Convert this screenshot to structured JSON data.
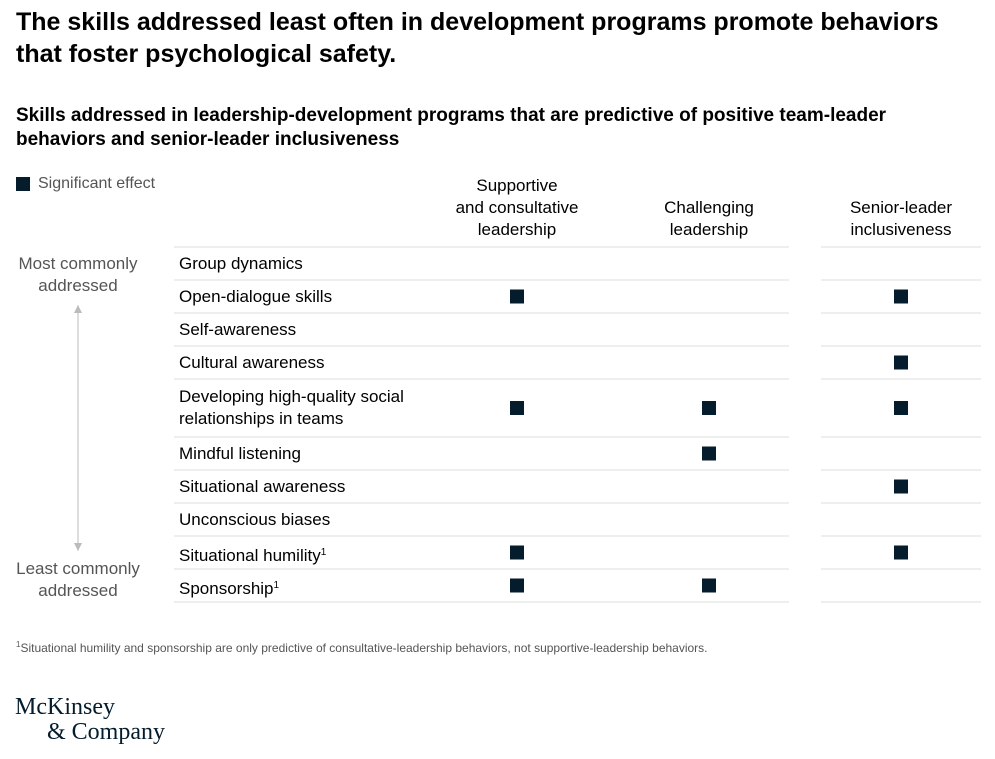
{
  "title": "The skills addressed least often in development programs promote behaviors that foster psychological safety.",
  "subtitle": "Skills addressed in leadership-development programs that are predictive of positive team-leader behaviors and senior-leader inclusiveness",
  "colors": {
    "marker": "#051c2c",
    "rule": "#dddddd",
    "arrow": "#bbbbbb",
    "muted": "#555555"
  },
  "chart_data": {
    "type": "table",
    "legend": "Significant effect",
    "columns": [
      {
        "lines": [
          "Supportive",
          "and consultative",
          "leadership"
        ]
      },
      {
        "lines": [
          "Challenging",
          "leadership"
        ]
      },
      {
        "lines": [
          "Senior-leader",
          "inclusiveness"
        ]
      }
    ],
    "rank_axis": {
      "top": [
        "Most commonly",
        "addressed"
      ],
      "bottom": [
        "Least commonly",
        "addressed"
      ]
    },
    "rows": [
      {
        "label": [
          "Group dynamics"
        ],
        "footnote": "",
        "effects": [
          false,
          false,
          false
        ]
      },
      {
        "label": [
          "Open-dialogue skills"
        ],
        "footnote": "",
        "effects": [
          true,
          false,
          true
        ]
      },
      {
        "label": [
          "Self-awareness"
        ],
        "footnote": "",
        "effects": [
          false,
          false,
          false
        ]
      },
      {
        "label": [
          "Cultural awareness"
        ],
        "footnote": "",
        "effects": [
          false,
          false,
          true
        ]
      },
      {
        "label": [
          "Developing high-quality social",
          "relationships in teams"
        ],
        "footnote": "",
        "effects": [
          true,
          true,
          true
        ]
      },
      {
        "label": [
          "Mindful listening"
        ],
        "footnote": "",
        "effects": [
          false,
          true,
          false
        ]
      },
      {
        "label": [
          "Situational awareness"
        ],
        "footnote": "",
        "effects": [
          false,
          false,
          true
        ]
      },
      {
        "label": [
          "Unconscious biases"
        ],
        "footnote": "",
        "effects": [
          false,
          false,
          false
        ]
      },
      {
        "label": [
          "Situational humility"
        ],
        "footnote": "1",
        "effects": [
          true,
          false,
          true
        ]
      },
      {
        "label": [
          "Sponsorship"
        ],
        "footnote": "1",
        "effects": [
          true,
          true,
          false
        ]
      }
    ]
  },
  "footnote": {
    "mark": "1",
    "text": "Situational humility and sponsorship are only predictive of consultative-leadership behaviors, not supportive-leadership behaviors."
  },
  "logo": {
    "line1": "McKinsey",
    "line2": "& Company"
  }
}
